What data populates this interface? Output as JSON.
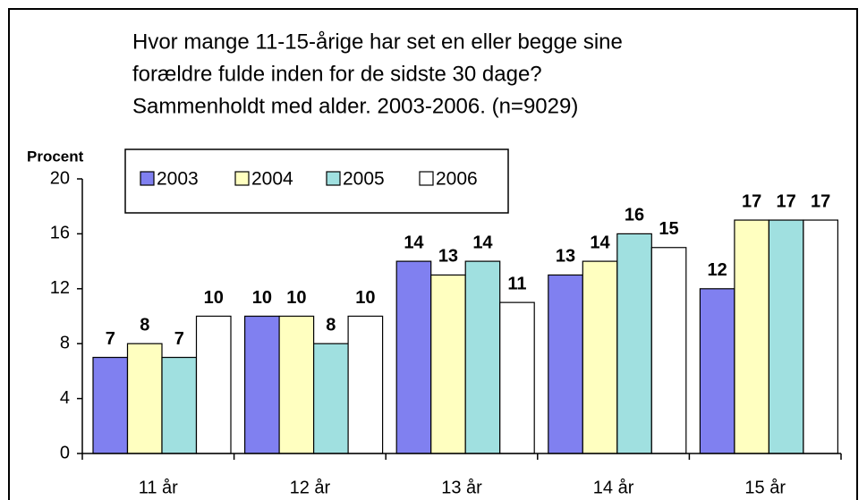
{
  "chart_data": {
    "type": "bar",
    "title": [
      "Hvor mange 11-15-årige har set en eller begge sine",
      "forældre fulde inden for de sidste 30 dage?",
      "Sammenholdt med alder. 2003-2006. (n=9029)"
    ],
    "y_label": "Procent",
    "categories": [
      "11 år",
      "12 år",
      "13 år",
      "14 år",
      "15 år"
    ],
    "series": [
      {
        "name": "2003",
        "color": "#8080f0",
        "values": [
          7,
          10,
          14,
          13,
          12
        ]
      },
      {
        "name": "2004",
        "color": "#ffffc0",
        "values": [
          8,
          10,
          13,
          14,
          17
        ]
      },
      {
        "name": "2005",
        "color": "#a0e0e0",
        "values": [
          7,
          8,
          14,
          16,
          17
        ]
      },
      {
        "name": "2006",
        "color": "#ffffff",
        "values": [
          10,
          10,
          11,
          15,
          17
        ]
      }
    ],
    "ylim": [
      0,
      20
    ],
    "yticks": [
      0,
      4,
      8,
      12,
      16,
      20
    ],
    "grid": false
  }
}
